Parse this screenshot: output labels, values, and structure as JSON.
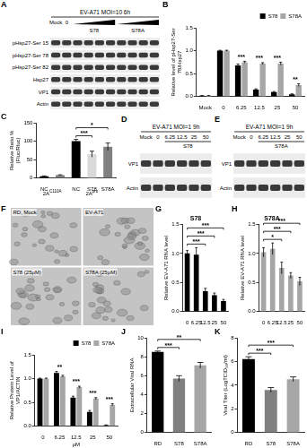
{
  "blots": [
    {
      "panel": "A",
      "header": "EV-A71 MOI=10 6h",
      "lanes": [
        "Mock",
        "0"
      ],
      "groups": [
        {
          "label": "S78",
          "lanes": 4
        },
        {
          "label": "S78A",
          "lanes": 4
        }
      ],
      "rows": [
        "pHsp27-Ser 15",
        "pHsp27-Ser 78",
        "pHsp27-Ser 82",
        "Hsp27",
        "VP1",
        "Actin"
      ]
    },
    {
      "panel": "D",
      "header": "EV-A71 MOI=1 9h",
      "lanes": [
        "Mock",
        "0",
        "6.25",
        "12.5",
        "25",
        "50"
      ],
      "group": {
        "label": "S78",
        "from": 2,
        "to": 5
      },
      "rows": [
        "VP1",
        "Actin"
      ]
    },
    {
      "panel": "E",
      "header": "EV-A71 MOI=1 9h",
      "lanes": [
        "Mock",
        "0",
        "6.25",
        "12.5",
        "25",
        "50"
      ],
      "group": {
        "label": "S78A",
        "from": 2,
        "to": 5
      },
      "rows": [
        "VP1",
        "Actin"
      ]
    }
  ],
  "images": {
    "panel": "F",
    "labels": [
      "RD, Mock",
      "EV-A71",
      "S78 (25μM)",
      "S78A (25μM)"
    ]
  },
  "chart_data": [
    {
      "panel": "B",
      "type": "bar",
      "y_label": "Relative level of pHsp27-Ser 78/Hsp27",
      "categories": [
        "Mock",
        "0",
        "6.25",
        "12.5",
        "25",
        "50"
      ],
      "series": [
        {
          "name": "S78",
          "color": "#000000",
          "values": [
            0.02,
            1.0,
            0.68,
            0.15,
            0.1,
            0.05
          ],
          "errors": [
            0.005,
            0.01,
            0.03,
            0.02,
            0.01,
            0.01
          ]
        },
        {
          "name": "S78A",
          "color": "#a6a6a6",
          "values": [
            0.02,
            1.0,
            0.75,
            0.72,
            0.72,
            0.25
          ],
          "errors": [
            0.005,
            0.01,
            0.02,
            0.02,
            0.03,
            0.03
          ]
        }
      ],
      "ylim": [
        0,
        1.5
      ],
      "yticks": [
        {
          "value": 0,
          "label": "0.0"
        },
        0.5,
        {
          "value": 1,
          "label": "1.0"
        },
        1.5
      ],
      "legend": "top-right",
      "grid": false,
      "annotations": [
        {
          "text": "***",
          "at": "6.25"
        },
        {
          "text": "***",
          "at": "12.5"
        },
        {
          "text": "***",
          "at": "25"
        },
        {
          "text": "**",
          "at": "50"
        }
      ]
    },
    {
      "panel": "C",
      "type": "bar",
      "y_label": "Relative Ratio % (Fluc/Rluc)",
      "categories": [
        "NC",
        null,
        "NC",
        "S78",
        "S78A"
      ],
      "values": [
        5,
        8,
        100,
        65,
        85
      ],
      "errors": [
        1,
        1,
        5,
        8,
        10
      ],
      "colors": [
        "#000000",
        "#808080",
        "#000000",
        "#d9d9d9",
        "#808080"
      ],
      "ylim": [
        0,
        150
      ],
      "yticks": [
        0,
        50,
        100,
        150
      ],
      "grid": false,
      "x_groups": [
        {
          "text": "2A",
          "superscript": "C110A",
          "from": 0,
          "to": 1
        },
        {
          "text": "2A",
          "superscript": "pro",
          "from": 2,
          "to": 4
        }
      ],
      "annotations": [
        {
          "text": "***",
          "from": 2,
          "to": 3
        },
        {
          "text": "*",
          "from": 2,
          "to": 4
        }
      ]
    },
    {
      "panel": "G",
      "type": "bar",
      "title": "S78",
      "y_label": "Relative EV-A71 RNA level",
      "categories": [
        "0",
        "6.25",
        "12.5",
        "25",
        "50"
      ],
      "values": [
        1.0,
        0.98,
        0.35,
        0.28,
        0.18
      ],
      "errors": [
        0.05,
        0.12,
        0.05,
        0.04,
        0.03
      ],
      "color": "#000000",
      "ylim": [
        0,
        1.5
      ],
      "yticks": [
        {
          "value": 0,
          "label": "0.0"
        },
        0.5,
        {
          "value": 1,
          "label": "1.0"
        },
        1.5
      ],
      "grid": false,
      "annotations": [
        {
          "text": "***",
          "from": 0,
          "to": 2
        },
        {
          "text": "***",
          "from": 0,
          "to": 3
        },
        {
          "text": "***",
          "from": 0,
          "to": 4
        }
      ]
    },
    {
      "panel": "H",
      "type": "bar",
      "title": "S78A",
      "y_label": "Relative EV-A71 RNA level",
      "categories": [
        "0",
        "6.25",
        "12.5",
        "25",
        "50"
      ],
      "values": [
        1.02,
        1.08,
        0.75,
        0.62,
        0.52
      ],
      "errors": [
        0.08,
        0.1,
        0.1,
        0.05,
        0.07
      ],
      "color": "#a6a6a6",
      "ylim": [
        0,
        1.5
      ],
      "yticks": [
        {
          "value": 0,
          "label": "0.0"
        },
        0.5,
        {
          "value": 1,
          "label": "1.0"
        },
        1.5
      ],
      "grid": false,
      "annotations": [
        {
          "text": "*",
          "from": 0,
          "to": 2
        },
        {
          "text": "***",
          "from": 0,
          "to": 3
        },
        {
          "text": "***",
          "from": 0,
          "to": 4
        }
      ]
    },
    {
      "panel": "I",
      "type": "bar",
      "y_label": "Relative Protein Level of VP1/ACTIN",
      "x_label": "μM",
      "categories": [
        "0",
        "6.25",
        "12.5",
        "25",
        "50"
      ],
      "series": [
        {
          "name": "S78",
          "color": "#000000",
          "values": [
            1.0,
            1.12,
            0.6,
            0.3,
            0.02
          ],
          "errors": [
            0.01,
            0.03,
            0.03,
            0.03,
            0.005
          ]
        },
        {
          "name": "S78A",
          "color": "#a6a6a6",
          "values": [
            1.0,
            1.05,
            0.82,
            0.58,
            0.45
          ],
          "errors": [
            0.01,
            0.02,
            0.02,
            0.02,
            0.02
          ]
        }
      ],
      "ylim": [
        0,
        1.5
      ],
      "yticks": [
        {
          "value": 0,
          "label": "0.0"
        },
        0.5,
        {
          "value": 1,
          "label": "1.0"
        },
        1.5
      ],
      "legend": "top-right",
      "grid": false,
      "annotations": [
        {
          "text": "**",
          "at": "6.25"
        },
        {
          "text": "***",
          "at": "12.5"
        },
        {
          "text": "***",
          "at": "25"
        },
        {
          "text": "***",
          "at": "50"
        }
      ]
    },
    {
      "panel": "J",
      "type": "bar",
      "y_label": "Extracellular Viral RNA",
      "categories": [
        "RD",
        "S78",
        "S78A"
      ],
      "values": [
        8.5,
        5.7,
        7.1
      ],
      "errors": [
        0.1,
        0.3,
        0.3
      ],
      "colors": [
        "#000000",
        "#808080",
        "#a6a6a6"
      ],
      "ylim": [
        0,
        10
      ],
      "yticks": [
        0,
        2,
        4,
        6,
        8,
        10
      ],
      "grid": false,
      "annotations": [
        {
          "text": "***",
          "from": 0,
          "to": 1
        },
        {
          "text": "**",
          "from": 0,
          "to": 2
        }
      ]
    },
    {
      "panel": "K",
      "type": "bar",
      "y_label": "Viral Titer (LogTCID₅₀/ml)",
      "categories": [
        "RD",
        "S78",
        "S78A"
      ],
      "values": [
        6.2,
        3.6,
        4.5
      ],
      "errors": [
        0.2,
        0.2,
        0.2
      ],
      "colors": [
        "#000000",
        "#808080",
        "#a6a6a6"
      ],
      "ylim": [
        0,
        8
      ],
      "yticks": [
        0,
        2,
        4,
        6,
        8
      ],
      "grid": false,
      "annotations": [
        {
          "text": "***",
          "from": 0,
          "to": 1
        },
        {
          "text": "***",
          "from": 0,
          "to": 2
        }
      ]
    }
  ]
}
